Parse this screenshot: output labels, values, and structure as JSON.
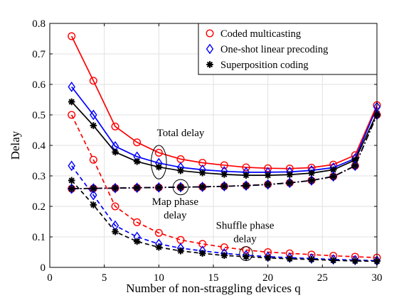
{
  "chart_data": {
    "type": "line",
    "xlabel": "Number of non-straggling devices q",
    "ylabel": "Delay",
    "xlim": [
      0,
      30
    ],
    "ylim": [
      0,
      0.8
    ],
    "xticks": [
      0,
      5,
      10,
      15,
      20,
      25,
      30
    ],
    "yticks": [
      0,
      0.1,
      0.2,
      0.3,
      0.4,
      0.5,
      0.6,
      0.7,
      0.8
    ],
    "xtick_labels": [
      "0",
      "5",
      "10",
      "15",
      "20",
      "25",
      "30"
    ],
    "ytick_labels": [
      "0",
      "0.1",
      "0.2",
      "0.3",
      "0.4",
      "0.5",
      "0.6",
      "0.7",
      "0.8"
    ],
    "grid": true,
    "legend_position": "top-right",
    "x": [
      2,
      4,
      6,
      8,
      10,
      12,
      14,
      16,
      18,
      20,
      22,
      24,
      26,
      28,
      30
    ],
    "series": [
      {
        "name": "Coded multicasting",
        "color": "#ff0000",
        "marker": "circle",
        "linestyle": "solid",
        "group": "Total delay",
        "values": [
          0.758,
          0.612,
          0.462,
          0.41,
          0.376,
          0.355,
          0.343,
          0.335,
          0.328,
          0.325,
          0.324,
          0.327,
          0.337,
          0.368,
          0.532
        ]
      },
      {
        "name": "One-shot linear precoding",
        "color": "#0000ff",
        "marker": "diamond",
        "linestyle": "solid",
        "group": "Total delay",
        "values": [
          0.592,
          0.5,
          0.397,
          0.363,
          0.342,
          0.328,
          0.32,
          0.315,
          0.312,
          0.312,
          0.313,
          0.318,
          0.327,
          0.357,
          0.526
        ]
      },
      {
        "name": "Superposition coding",
        "color": "#000000",
        "marker": "star",
        "linestyle": "solid",
        "group": "Total delay",
        "values": [
          0.543,
          0.465,
          0.378,
          0.347,
          0.329,
          0.317,
          0.31,
          0.305,
          0.302,
          0.302,
          0.304,
          0.309,
          0.32,
          0.352,
          0.505
        ]
      },
      {
        "name": "",
        "color": "#ff0000",
        "marker": "circle",
        "linestyle": "dashed",
        "group": "Shuffle phase delay",
        "values": [
          0.5,
          0.353,
          0.2,
          0.148,
          0.113,
          0.09,
          0.077,
          0.066,
          0.057,
          0.05,
          0.046,
          0.042,
          0.038,
          0.035,
          0.032
        ]
      },
      {
        "name": "",
        "color": "#0000ff",
        "marker": "diamond",
        "linestyle": "dashed",
        "group": "Shuffle phase delay",
        "values": [
          0.333,
          0.237,
          0.137,
          0.1,
          0.077,
          0.063,
          0.054,
          0.046,
          0.04,
          0.035,
          0.032,
          0.029,
          0.026,
          0.024,
          0.022
        ]
      },
      {
        "name": "",
        "color": "#000000",
        "marker": "star",
        "linestyle": "dashed",
        "group": "Shuffle phase delay",
        "values": [
          0.285,
          0.205,
          0.117,
          0.085,
          0.066,
          0.054,
          0.046,
          0.039,
          0.035,
          0.031,
          0.028,
          0.026,
          0.023,
          0.021,
          0.02
        ]
      },
      {
        "name": "",
        "color": "#ff0000",
        "marker": "circle",
        "linestyle": "dashdot",
        "group": "Map phase delay",
        "values": [
          0.258,
          0.259,
          0.26,
          0.261,
          0.262,
          0.263,
          0.264,
          0.266,
          0.268,
          0.272,
          0.277,
          0.285,
          0.298,
          0.333,
          0.5
        ]
      },
      {
        "name": "",
        "color": "#0000ff",
        "marker": "diamond",
        "linestyle": "dashdot",
        "group": "Map phase delay",
        "values": [
          0.258,
          0.259,
          0.26,
          0.261,
          0.262,
          0.263,
          0.264,
          0.266,
          0.268,
          0.272,
          0.277,
          0.285,
          0.298,
          0.333,
          0.5
        ]
      },
      {
        "name": "",
        "color": "#000000",
        "marker": "star",
        "linestyle": "dashdot",
        "group": "Map phase delay",
        "values": [
          0.258,
          0.259,
          0.26,
          0.261,
          0.262,
          0.263,
          0.264,
          0.266,
          0.268,
          0.272,
          0.277,
          0.285,
          0.298,
          0.333,
          0.5
        ]
      }
    ],
    "annotations": [
      {
        "id": "total",
        "lines": [
          "Total delay"
        ],
        "at": [
          12,
          0.43
        ],
        "ellipse": {
          "cx": 10,
          "cy": 0.345,
          "rx": 0.7,
          "ry": 0.055
        }
      },
      {
        "id": "map",
        "lines": [
          "Map phase",
          "delay"
        ],
        "at": [
          11.5,
          0.205
        ],
        "ellipse": {
          "cx": 12,
          "cy": 0.263,
          "rx": 0.7,
          "ry": 0.025
        }
      },
      {
        "id": "shuffle",
        "lines": [
          "Shuffle phase",
          "delay"
        ],
        "at": [
          17.9,
          0.127
        ],
        "ellipse": {
          "cx": 18,
          "cy": 0.045,
          "rx": 0.6,
          "ry": 0.023
        }
      }
    ]
  }
}
